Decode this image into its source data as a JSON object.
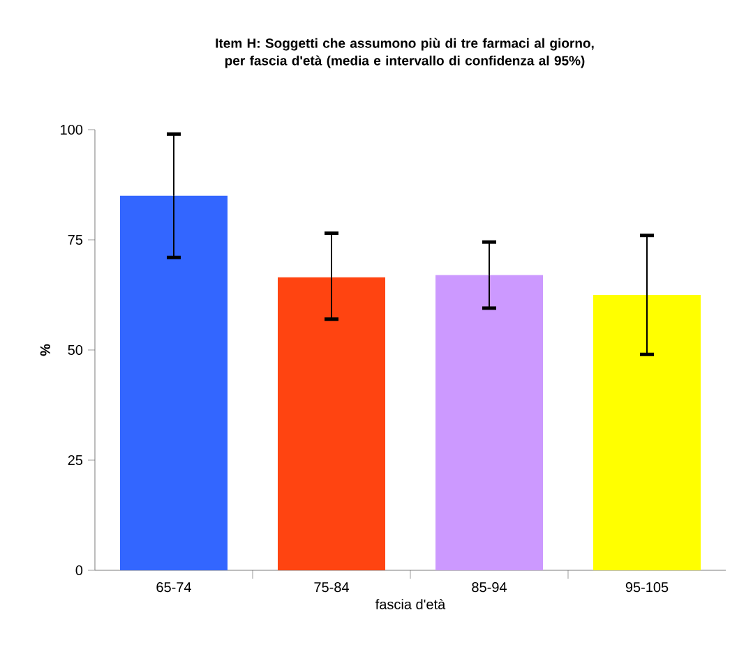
{
  "chart_data": {
    "type": "bar",
    "title": "Item H: Soggetti che assumono più di tre farmaci al giorno, per fascia d'età (media e intervallo di confidenza al 95%)",
    "xlabel": "fascia d'età",
    "ylabel": "%",
    "categories": [
      "65-74",
      "75-84",
      "85-94",
      "95-105"
    ],
    "values": [
      85,
      66.5,
      67,
      62.5
    ],
    "colors": [
      "#3366ff",
      "#ff4411",
      "#cc99ff",
      "#ffff00"
    ],
    "errors": [
      [
        71,
        99
      ],
      [
        57,
        76.5
      ],
      [
        59.5,
        74.5
      ],
      [
        49,
        76
      ]
    ],
    "ylim": [
      0,
      100
    ],
    "yticks": [
      0,
      25,
      50,
      75,
      100
    ],
    "grid": false
  }
}
